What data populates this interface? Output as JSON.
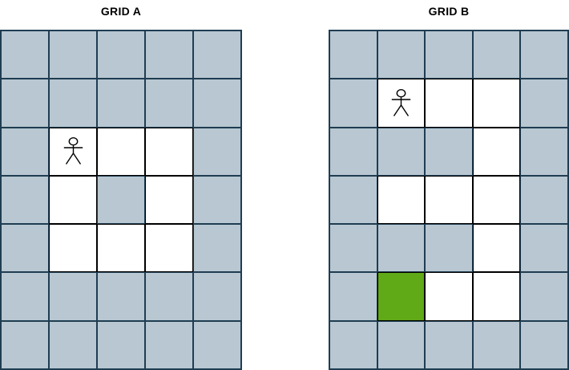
{
  "colors": {
    "wall_fill": "#b8c7d1",
    "wall_border": "#1f3d52",
    "open_fill": "#ffffff",
    "open_border": "#000000",
    "green_fill": "#60a917",
    "background": "#ffffff",
    "title_color": "#000000"
  },
  "cell_codes": {
    "b": "wall",
    "w": "open",
    "g": "green",
    "p": "person"
  },
  "person_icon": "stick-figure",
  "grids": [
    {
      "id": "A",
      "title": "GRID A",
      "columns": 5,
      "row_count": 7,
      "rows": [
        "bbbbb",
        "bbbbb",
        "bpwwb",
        "bwbwb",
        "bwwwb",
        "bbbbb",
        "bbbbb"
      ]
    },
    {
      "id": "B",
      "title": "GRID B",
      "columns": 5,
      "row_count": 7,
      "rows": [
        "bbbbb",
        "bpwwb",
        "bbbwb",
        "bwwwb",
        "bbbwb",
        "bgwwb",
        "bbbbb"
      ]
    }
  ]
}
